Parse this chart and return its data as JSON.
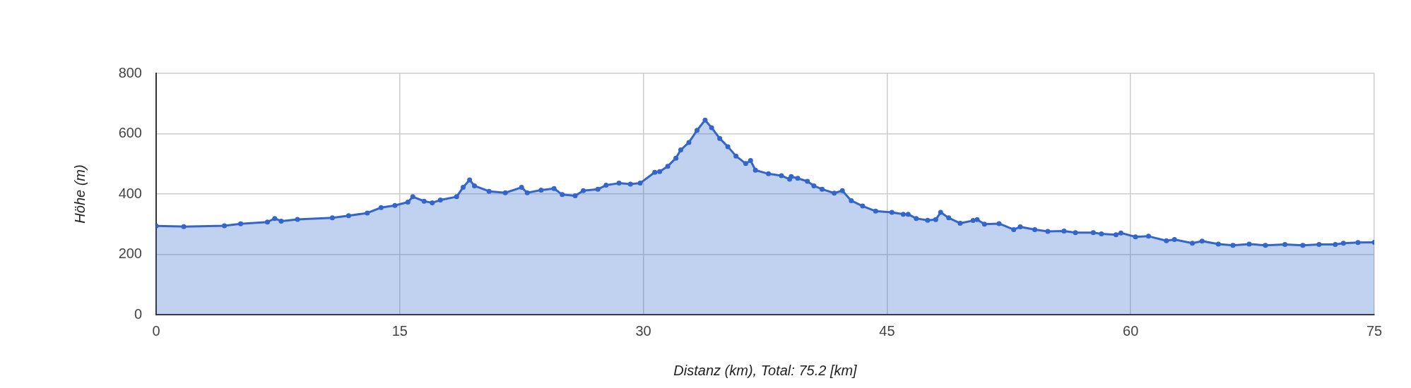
{
  "chart_data": {
    "type": "area",
    "xlabel": "Distanz (km), Total: 75.2 [km]",
    "ylabel": "Höhe (m)",
    "xlim": [
      0,
      75
    ],
    "xticks": [
      0,
      15,
      30,
      45,
      60,
      75
    ],
    "ylim": [
      0,
      800
    ],
    "yticks": [
      0,
      200,
      400,
      600,
      800
    ],
    "grid": true,
    "legend": false,
    "marker": "circle",
    "line_style": "solid",
    "series": [
      {
        "color": "#3366cc",
        "x": [
          0,
          1.7,
          4.2,
          5.2,
          6.85,
          7.3,
          7.7,
          8.7,
          10.85,
          11.85,
          13.0,
          13.85,
          14.7,
          15.5,
          15.8,
          16.5,
          17.0,
          17.5,
          18.5,
          18.9,
          19.3,
          19.6,
          20.5,
          21.5,
          22.5,
          22.85,
          23.7,
          24.5,
          25.0,
          25.8,
          26.3,
          27.2,
          27.7,
          28.5,
          29.2,
          29.8,
          30.7,
          31.0,
          31.5,
          32.0,
          32.3,
          32.8,
          33.3,
          33.8,
          34.2,
          34.7,
          35.2,
          35.7,
          36.3,
          36.6,
          36.9,
          37.7,
          38.5,
          39.0,
          39.1,
          39.5,
          40.1,
          40.5,
          41.0,
          41.75,
          42.25,
          42.8,
          43.5,
          44.3,
          45.3,
          46.0,
          46.3,
          46.8,
          47.5,
          48.0,
          48.3,
          48.8,
          49.5,
          50.3,
          50.55,
          51.0,
          51.9,
          52.8,
          53.2,
          54.1,
          54.9,
          55.9,
          56.6,
          57.7,
          58.2,
          59.1,
          59.4,
          60.3,
          61.1,
          62.2,
          62.7,
          63.8,
          64.4,
          65.4,
          66.3,
          67.3,
          68.3,
          69.5,
          70.6,
          71.6,
          72.6,
          73.1,
          74.0,
          75.0
        ],
        "values": [
          294,
          292,
          295,
          301,
          307,
          319,
          310,
          316,
          321,
          328,
          337,
          355,
          362,
          373,
          391,
          376,
          371,
          380,
          391,
          422,
          447,
          427,
          409,
          404,
          422,
          404,
          413,
          418,
          398,
          394,
          411,
          416,
          429,
          436,
          433,
          436,
          472,
          474,
          492,
          519,
          546,
          571,
          611,
          645,
          620,
          584,
          557,
          526,
          501,
          511,
          479,
          467,
          461,
          449,
          458,
          452,
          442,
          427,
          416,
          403,
          411,
          378,
          360,
          343,
          339,
          333,
          333,
          319,
          313,
          315,
          339,
          321,
          303,
          312,
          315,
          300,
          302,
          282,
          291,
          282,
          276,
          277,
          272,
          272,
          268,
          265,
          271,
          258,
          260,
          245,
          249,
          237,
          244,
          234,
          230,
          234,
          230,
          233,
          230,
          233,
          233,
          237,
          239,
          240
        ]
      }
    ]
  }
}
